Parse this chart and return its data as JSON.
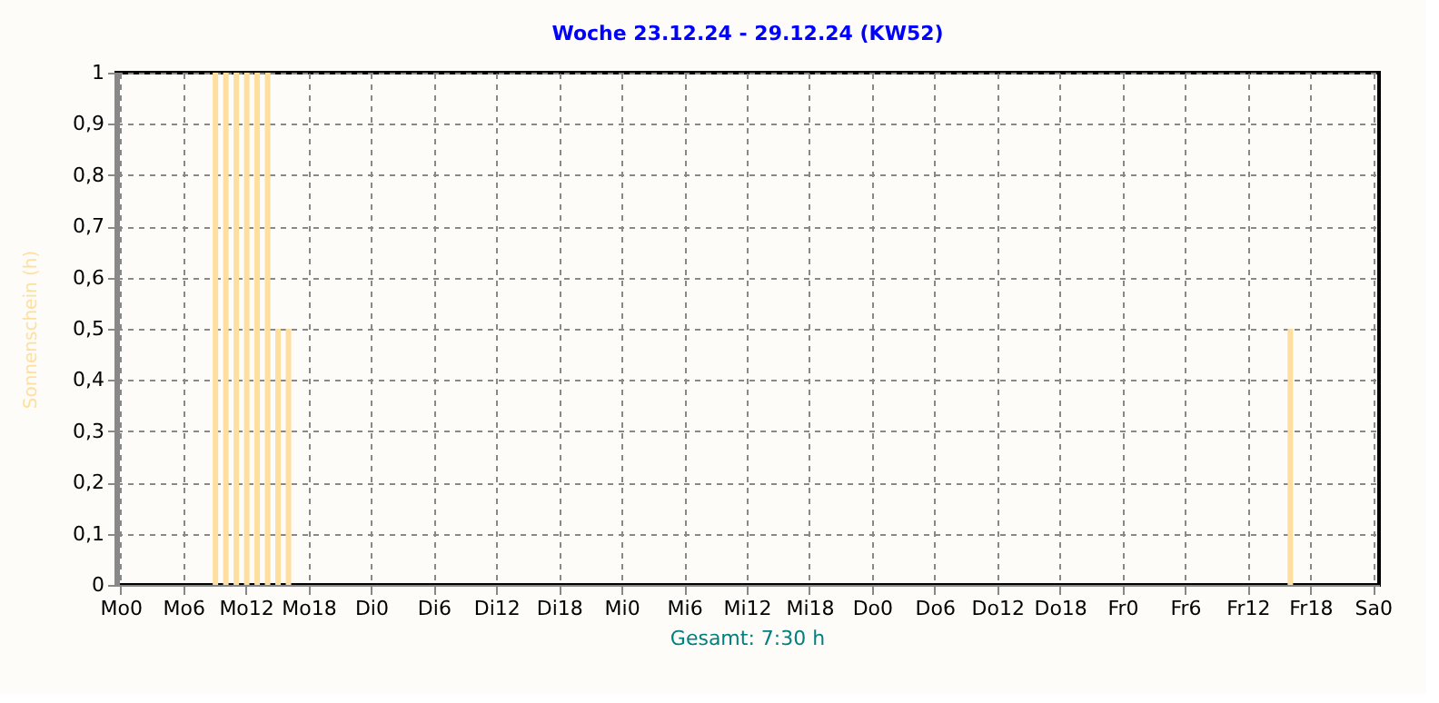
{
  "chart_data": {
    "type": "bar",
    "title": "Woche 23.12.24 - 29.12.24 (KW52)",
    "ylabel": "Sonnenschein  (h)",
    "categories": [
      "Mo0",
      null,
      null,
      null,
      null,
      null,
      "Mo6",
      null,
      null,
      null,
      null,
      null,
      "Mo12",
      null,
      null,
      null,
      null,
      null,
      "Mo18",
      null,
      null,
      null,
      null,
      null,
      "Di0",
      null,
      null,
      null,
      null,
      null,
      "Di6",
      null,
      null,
      null,
      null,
      null,
      "Di12",
      null,
      null,
      null,
      null,
      null,
      "Di18",
      null,
      null,
      null,
      null,
      null,
      "Mi0",
      null,
      null,
      null,
      null,
      null,
      "Mi6",
      null,
      null,
      null,
      null,
      null,
      "Mi12",
      null,
      null,
      null,
      null,
      null,
      "Mi18",
      null,
      null,
      null,
      null,
      null,
      "Do0",
      null,
      null,
      null,
      null,
      null,
      "Do6",
      null,
      null,
      null,
      null,
      null,
      "Do12",
      null,
      null,
      null,
      null,
      null,
      "Do18",
      null,
      null,
      null,
      null,
      null,
      "Fr0",
      null,
      null,
      null,
      null,
      null,
      "Fr6",
      null,
      null,
      null,
      null,
      null,
      "Fr12",
      null,
      null,
      null,
      null,
      null,
      "Fr18",
      null,
      null,
      null,
      null,
      null,
      "Sa0"
    ],
    "values": [
      0,
      0,
      0,
      0,
      0,
      0,
      0,
      0,
      0,
      1,
      1,
      1,
      1,
      1,
      1,
      0.5,
      0.5,
      0,
      0,
      0,
      0,
      0,
      0,
      0,
      0,
      0,
      0,
      0,
      0,
      0,
      0,
      0,
      0,
      0,
      0,
      0,
      0,
      0,
      0,
      0,
      0,
      0,
      0,
      0,
      0,
      0,
      0,
      0,
      0,
      0,
      0,
      0,
      0,
      0,
      0,
      0,
      0,
      0,
      0,
      0,
      0,
      0,
      0,
      0,
      0,
      0,
      0,
      0,
      0,
      0,
      0,
      0,
      0,
      0,
      0,
      0,
      0,
      0,
      0,
      0,
      0,
      0,
      0,
      0,
      0,
      0,
      0,
      0,
      0,
      0,
      0,
      0,
      0,
      0,
      0,
      0,
      0,
      0,
      0,
      0,
      0,
      0,
      0,
      0,
      0,
      0,
      0,
      0,
      0,
      0,
      0,
      0,
      0.5,
      0,
      0,
      0,
      0,
      0,
      0,
      0,
      0
    ],
    "color": "#ffdf9f",
    "ylim": [
      0,
      1
    ],
    "yticks": [
      0,
      {
        "value": 0.1,
        "label": "0,1"
      },
      {
        "value": 0.2,
        "label": "0,2"
      },
      {
        "value": 0.3,
        "label": "0,3"
      },
      {
        "value": 0.4,
        "label": "0,4"
      },
      {
        "value": 0.5,
        "label": "0,5"
      },
      {
        "value": 0.6,
        "label": "0,6"
      },
      {
        "value": 0.7,
        "label": "0,7"
      },
      {
        "value": 0.8,
        "label": "0,8"
      },
      {
        "value": 0.9,
        "label": "0,9"
      },
      1
    ],
    "grid": true,
    "annotations": [
      "Gesamt: 7:30 h"
    ]
  }
}
